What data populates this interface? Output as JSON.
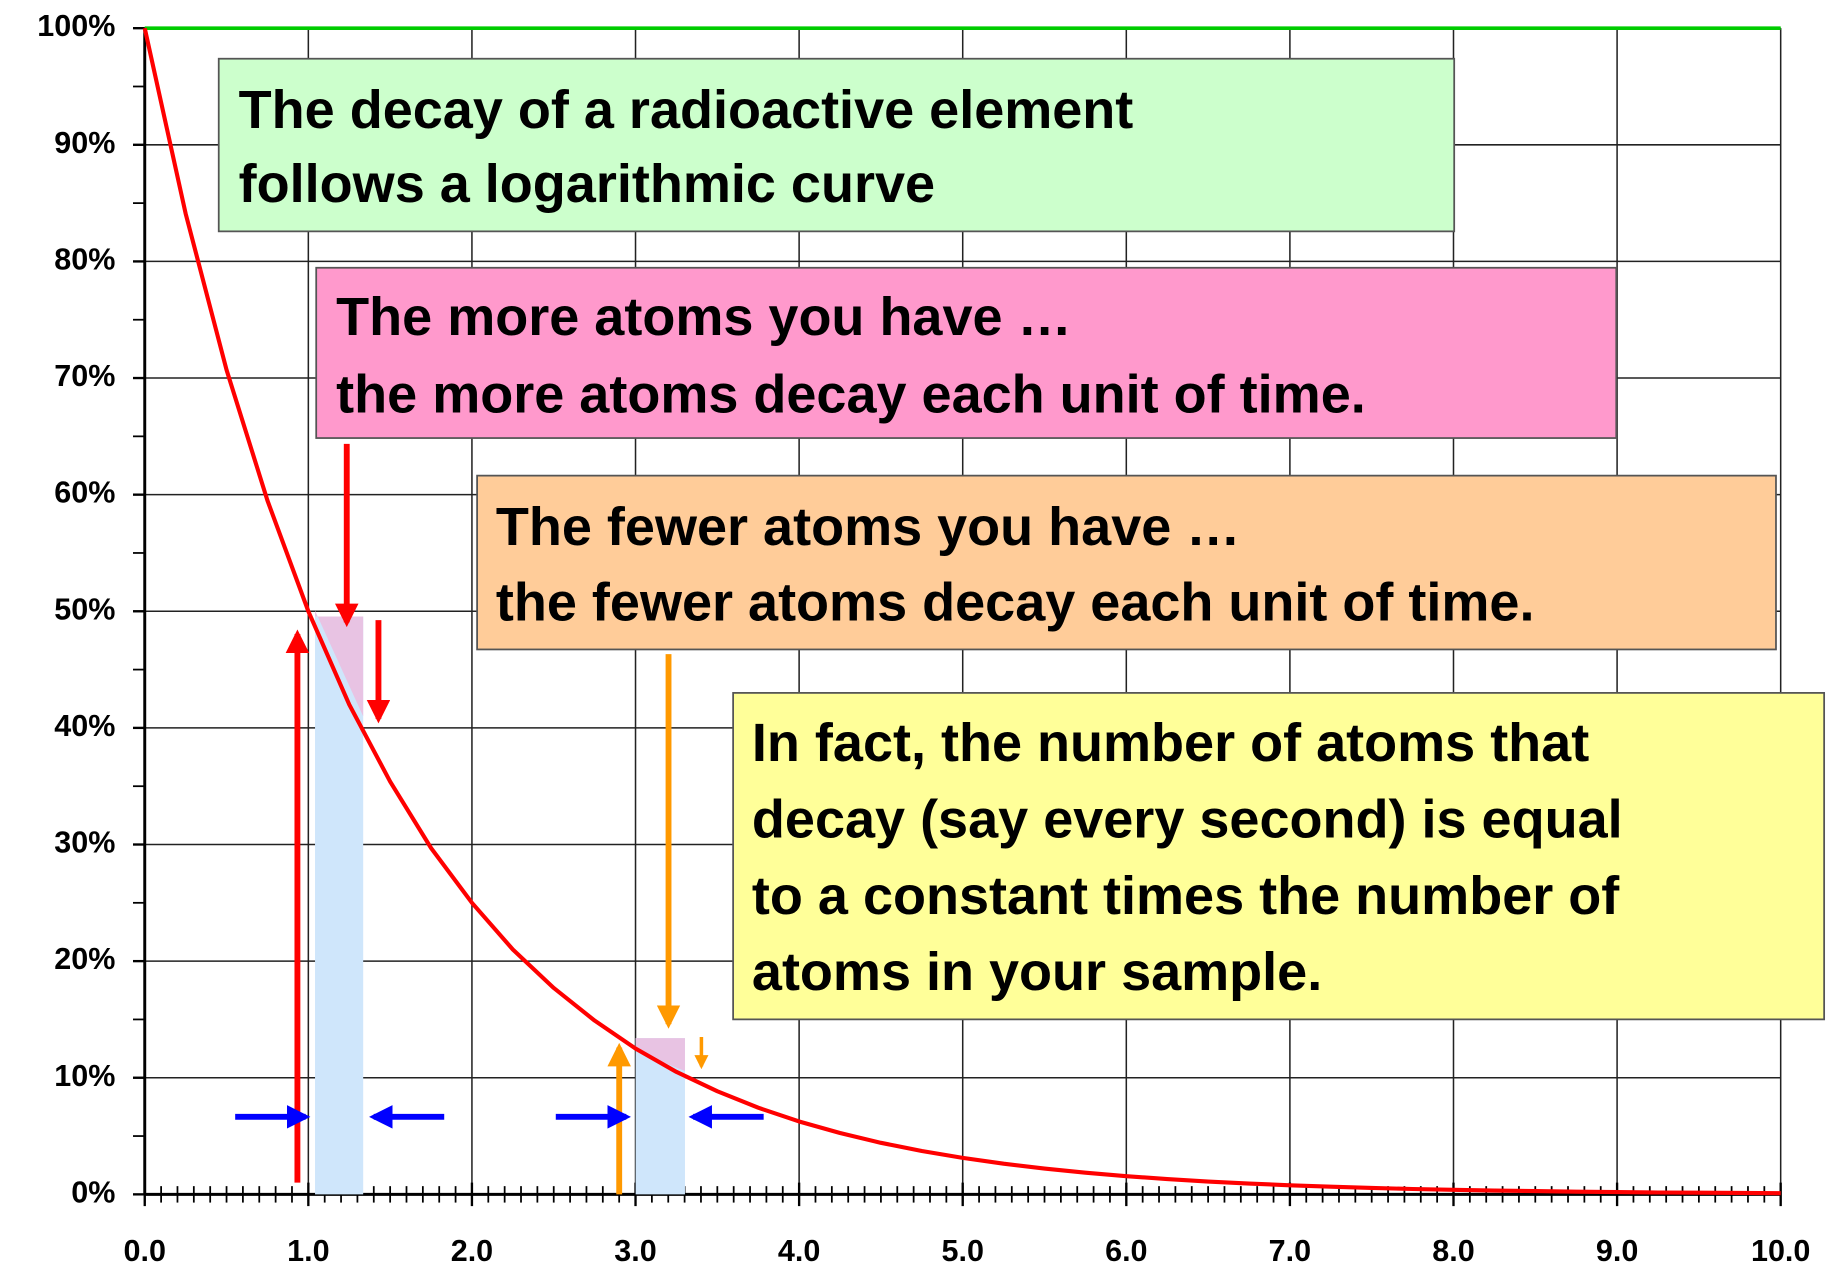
{
  "chart_data": {
    "type": "line",
    "x": [
      0,
      0.25,
      0.5,
      0.75,
      1,
      1.25,
      1.5,
      1.75,
      2,
      2.25,
      2.5,
      2.75,
      3,
      3.25,
      3.5,
      3.75,
      4,
      4.25,
      4.5,
      4.75,
      5,
      5.25,
      5.5,
      5.75,
      6,
      6.25,
      6.5,
      6.75,
      7,
      7.25,
      7.5,
      7.75,
      8,
      8.25,
      8.5,
      8.75,
      9,
      9.25,
      9.5,
      9.75,
      10
    ],
    "series": [
      {
        "color": "#ff0000",
        "values": [
          100,
          84.1,
          70.7,
          59.5,
          50,
          42.0,
          35.4,
          29.7,
          25,
          21.0,
          17.7,
          14.9,
          12.5,
          10.5,
          8.84,
          7.43,
          6.25,
          5.26,
          4.42,
          3.72,
          3.13,
          2.63,
          2.21,
          1.86,
          1.56,
          1.31,
          1.1,
          0.93,
          0.78,
          0.66,
          0.55,
          0.46,
          0.39,
          0.33,
          0.28,
          0.23,
          0.2,
          0.16,
          0.14,
          0.12,
          0.1
        ]
      }
    ],
    "xlim": [
      0,
      10
    ],
    "ylim": [
      0,
      100
    ],
    "xticks": [
      {
        "value": 0,
        "label": "0.0"
      },
      {
        "value": 1,
        "label": "1.0"
      },
      {
        "value": 2,
        "label": "2.0"
      },
      {
        "value": 3,
        "label": "3.0"
      },
      {
        "value": 4,
        "label": "4.0"
      },
      {
        "value": 5,
        "label": "5.0"
      },
      {
        "value": 6,
        "label": "6.0"
      },
      {
        "value": 7,
        "label": "7.0"
      },
      {
        "value": 8,
        "label": "8.0"
      },
      {
        "value": 9,
        "label": "9.0"
      },
      {
        "value": 10,
        "label": "10.0"
      }
    ],
    "yticks": [
      {
        "value": 0,
        "label": "0%"
      },
      {
        "value": 10,
        "label": "10%"
      },
      {
        "value": 20,
        "label": "20%"
      },
      {
        "value": 30,
        "label": "30%"
      },
      {
        "value": 40,
        "label": "40%"
      },
      {
        "value": 50,
        "label": "50%"
      },
      {
        "value": 60,
        "label": "60%"
      },
      {
        "value": 70,
        "label": "70%"
      },
      {
        "value": 80,
        "label": "80%"
      },
      {
        "value": 90,
        "label": "90%"
      },
      {
        "value": 100,
        "label": "100%"
      }
    ],
    "minor_xtick_step": 0.1,
    "minor_ytick_step": 5,
    "grid": true,
    "reference_line": {
      "value": 100,
      "color": "#00cc00"
    },
    "annotations": [
      {
        "fill": "#ccffcc",
        "lines": [
          "The decay of a radioactive element",
          "follows a logarithmic curve"
        ]
      },
      {
        "fill": "#ff99cc",
        "lines": [
          "The more atoms you have …",
          "the more atoms decay each unit of time."
        ]
      },
      {
        "fill": "#ffcc99",
        "lines": [
          "The fewer atoms you have …",
          "the fewer atoms decay each unit of time."
        ]
      },
      {
        "fill": "#ffff99",
        "lines": [
          "In fact, the number of atoms that",
          "decay (say every second) is equal",
          "to a constant times the number of",
          "atoms in your sample."
        ]
      }
    ]
  }
}
